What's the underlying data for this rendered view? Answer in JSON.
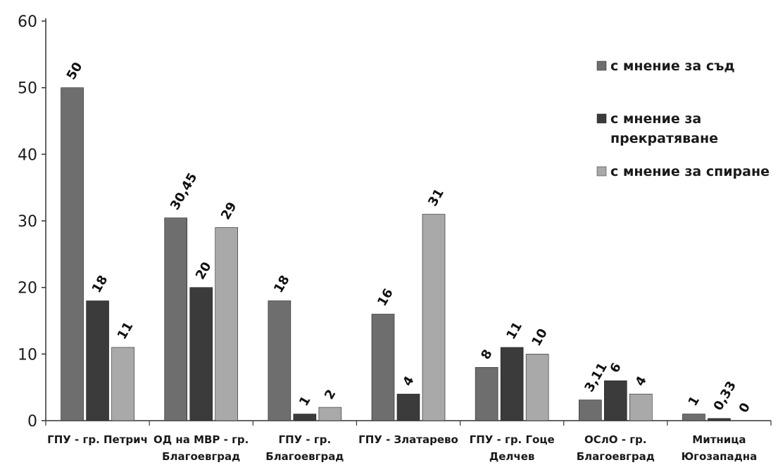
{
  "chart_data": {
    "type": "bar",
    "title": "",
    "xlabel": "",
    "ylabel": "",
    "ylim": [
      0,
      60
    ],
    "yticks": [
      0,
      10,
      20,
      30,
      40,
      50,
      60
    ],
    "grid": false,
    "legend_position": "right",
    "categories": [
      [
        "ГПУ - гр. Петрич"
      ],
      [
        "ОД на МВР - гр.",
        "Благоевград"
      ],
      [
        "ГПУ - гр.",
        "Благоевград"
      ],
      [
        "ГПУ - Златарево"
      ],
      [
        "ГПУ - гр. Гоце",
        "Делчев"
      ],
      [
        "ОСлО - гр.",
        "Благоевград"
      ],
      [
        "Митница",
        "Югозападна"
      ]
    ],
    "series": [
      {
        "name": "с мнение за съд",
        "color": "#6e6e6e",
        "values": [
          50,
          30.45,
          18,
          16,
          8,
          3.11,
          1
        ],
        "labels": [
          "50",
          "30,45",
          "18",
          "16",
          "8",
          "3,11",
          "1"
        ]
      },
      {
        "name": "с мнение за прекратяване",
        "color": "#3b3b3b",
        "values": [
          18,
          20,
          1,
          4,
          11,
          6,
          0.33
        ],
        "labels": [
          "18",
          "20",
          "1",
          "4",
          "11",
          "6",
          "0,33"
        ]
      },
      {
        "name": "с мнение за спиране",
        "color": "#a9a9a9",
        "values": [
          11,
          29,
          2,
          31,
          10,
          4,
          0
        ],
        "labels": [
          "11",
          "29",
          "2",
          "31",
          "10",
          "4",
          "0"
        ]
      }
    ],
    "legend": {
      "entries": [
        [
          "с мнение за съд"
        ],
        [
          "с мнение за",
          "прекратяване"
        ],
        [
          "с мнение за спиране"
        ]
      ]
    }
  }
}
